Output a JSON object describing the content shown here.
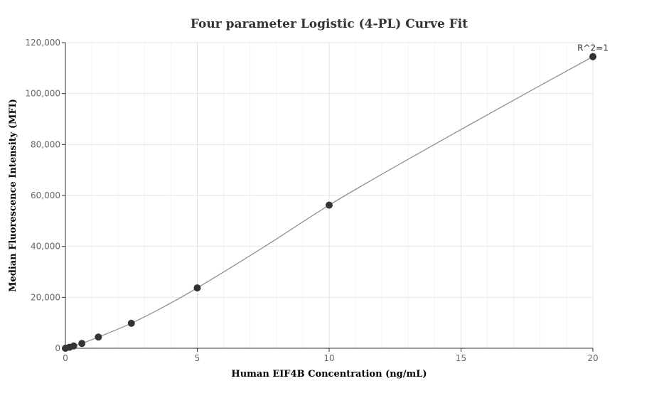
{
  "chart_data": {
    "type": "scatter",
    "title": "Four parameter Logistic (4-PL) Curve Fit",
    "xlabel": "Human EIF4B Concentration (ng/mL)",
    "ylabel": "Median Fluorescence Intensity (MFI)",
    "xlim": [
      0,
      20
    ],
    "ylim": [
      0,
      120000
    ],
    "x_ticks": [
      0,
      5,
      10,
      15,
      20
    ],
    "x_tick_labels": [
      "0",
      "5",
      "10",
      "15",
      "20"
    ],
    "y_ticks": [
      0,
      20000,
      40000,
      60000,
      80000,
      100000,
      120000
    ],
    "y_tick_labels": [
      "0",
      "20,000",
      "40,000",
      "60,000",
      "80,000",
      "100,000",
      "120,000"
    ],
    "grid": true,
    "points": [
      {
        "x": 0,
        "y": 0
      },
      {
        "x": 0.156,
        "y": 400
      },
      {
        "x": 0.313,
        "y": 900
      },
      {
        "x": 0.625,
        "y": 1900
      },
      {
        "x": 1.25,
        "y": 4400
      },
      {
        "x": 2.5,
        "y": 9800
      },
      {
        "x": 5,
        "y": 23700
      },
      {
        "x": 10,
        "y": 56200
      },
      {
        "x": 20,
        "y": 114500
      }
    ],
    "fit_curve": {
      "model": "4PL",
      "x": [
        0,
        0.625,
        1.25,
        2.5,
        3.75,
        5,
        7.5,
        10,
        12.5,
        15,
        17.5,
        20
      ],
      "y": [
        0,
        1900,
        4400,
        9800,
        16400,
        23700,
        39600,
        56200,
        71300,
        85900,
        100300,
        114500
      ]
    },
    "annotation": {
      "text": "R^2=1",
      "x": 20,
      "y": 114500
    },
    "colors": {
      "points": "#333333",
      "curve": "#888888",
      "grid": "#e6e6e6",
      "axis": "#333333"
    }
  }
}
